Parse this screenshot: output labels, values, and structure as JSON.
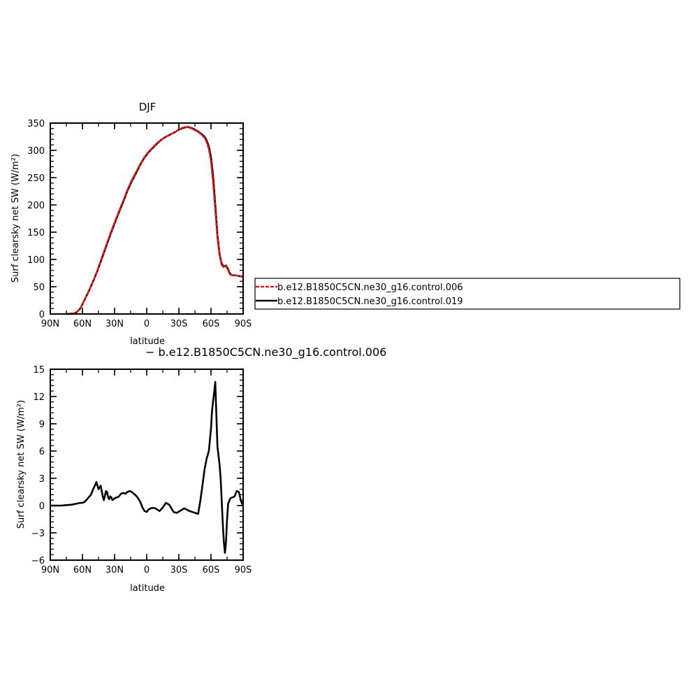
{
  "chart_data": [
    {
      "type": "line",
      "title": "DJF",
      "xlabel": "latitude",
      "ylabel": "Surf clearsky net SW (W/m²)",
      "xlim": [
        90,
        -90
      ],
      "ylim": [
        0,
        350
      ],
      "x_ticks": [
        90,
        60,
        30,
        0,
        -30,
        -60,
        -90
      ],
      "x_tick_labels": [
        "90N",
        "60N",
        "30N",
        "0",
        "30S",
        "60S",
        "90S"
      ],
      "y_ticks": [
        0,
        50,
        100,
        150,
        200,
        250,
        300,
        350
      ],
      "y_tick_labels": [
        "0",
        "50",
        "100",
        "150",
        "200",
        "250",
        "300",
        "350"
      ],
      "legend": {
        "placement": "right",
        "entries": [
          {
            "name": "b.e12.B1850C5CN.ne30_g16.control.006",
            "color": "#e41a1c",
            "dash": "dashed"
          },
          {
            "name": "b.e12.B1850C5CN.ne30_g16.control.019",
            "color": "#000000",
            "dash": "solid"
          }
        ]
      },
      "series": [
        {
          "name": "b.e12.B1850C5CN.ne30_g16.control.006",
          "color": "#e41a1c",
          "x": [
            75,
            70,
            67,
            65,
            62,
            60,
            57,
            54,
            50,
            46,
            42,
            38,
            34,
            30,
            26,
            22,
            18,
            14,
            10,
            6,
            2,
            -2,
            -6,
            -10,
            -14,
            -18,
            -22,
            -26,
            -30,
            -34,
            -38,
            -42,
            -46,
            -50,
            -54,
            -56,
            -58,
            -60,
            -62,
            -64,
            -66,
            -68,
            -70,
            -72,
            -74,
            -76,
            -78,
            -80,
            -82,
            -85,
            -88,
            -90
          ],
          "y": [
            0,
            0.5,
            1.5,
            4,
            10,
            18,
            30,
            42,
            60,
            80,
            103,
            125,
            147,
            168,
            188,
            207,
            228,
            245,
            260,
            275,
            288,
            298,
            306,
            314,
            320,
            325,
            329,
            333,
            338,
            342,
            343,
            340,
            336,
            331,
            323,
            315,
            302,
            280,
            240,
            190,
            140,
            108,
            90,
            85,
            88,
            80,
            72,
            71,
            71,
            70,
            69,
            68
          ]
        },
        {
          "name": "b.e12.B1850C5CN.ne30_g16.control.019",
          "color": "#000000",
          "x": [
            75,
            70,
            67,
            65,
            62,
            60,
            57,
            54,
            50,
            46,
            42,
            38,
            34,
            30,
            26,
            22,
            18,
            14,
            10,
            6,
            2,
            -2,
            -6,
            -10,
            -14,
            -18,
            -22,
            -26,
            -30,
            -34,
            -38,
            -42,
            -46,
            -50,
            -54,
            -56,
            -58,
            -60,
            -62,
            -64,
            -66,
            -68,
            -70,
            -72,
            -74,
            -76,
            -78,
            -80,
            -82,
            -85,
            -88,
            -90
          ],
          "y": [
            0,
            0.5,
            1.5,
            4,
            10,
            18,
            30,
            42,
            60,
            79,
            101,
            123,
            145,
            166,
            186,
            205,
            226,
            243,
            258,
            274,
            287,
            297,
            305,
            313,
            320,
            325,
            329,
            333,
            338,
            341,
            343,
            341,
            337,
            332,
            325,
            318,
            307,
            288,
            252,
            200,
            145,
            110,
            92,
            87,
            89,
            82,
            73,
            71,
            71,
            70,
            69,
            68
          ]
        }
      ]
    },
    {
      "type": "line",
      "title": "",
      "xlabel": "latitude",
      "ylabel": "Surf clearsky net SW (W/m²)",
      "xlim": [
        90,
        -90
      ],
      "ylim": [
        -6,
        15
      ],
      "x_ticks": [
        90,
        60,
        30,
        0,
        -30,
        -60,
        -90
      ],
      "x_tick_labels": [
        "90N",
        "60N",
        "30N",
        "0",
        "30S",
        "60S",
        "90S"
      ],
      "y_ticks": [
        -6,
        -3,
        0,
        3,
        6,
        9,
        12,
        15
      ],
      "y_tick_labels": [
        "−6",
        "−3",
        "0",
        "3",
        "6",
        "9",
        "12",
        "15"
      ],
      "legend_label": "− b.e12.B1850C5CN.ne30_g16.control.006",
      "series": [
        {
          "name": "",
          "color": "#000000",
          "x": [
            90,
            85,
            80,
            75,
            70,
            66,
            62,
            60,
            58,
            55,
            52,
            50,
            48,
            47,
            45,
            44,
            43,
            42,
            41,
            40,
            39,
            38,
            37,
            36,
            35,
            34,
            33,
            32,
            30,
            28,
            26,
            24,
            22,
            20,
            18,
            16,
            14,
            12,
            10,
            8,
            6,
            4,
            2,
            0,
            -2,
            -5,
            -8,
            -12,
            -15,
            -18,
            -21,
            -23,
            -25,
            -28,
            -31,
            -35,
            -40,
            -45,
            -48,
            -50,
            -52,
            -54,
            -56,
            -58,
            -60,
            -61,
            -62,
            -63,
            -64,
            -65,
            -66,
            -67,
            -68,
            -69,
            -70,
            -71,
            -72,
            -73,
            -74,
            -75,
            -76,
            -78,
            -80,
            -82,
            -84,
            -86,
            -88,
            -89,
            -90
          ],
          "y": [
            0,
            0,
            0,
            0.05,
            0.1,
            0.2,
            0.3,
            0.3,
            0.4,
            0.8,
            1.2,
            1.8,
            2.3,
            2.6,
            1.8,
            2.0,
            2.2,
            1.6,
            1.0,
            0.6,
            1.1,
            1.6,
            1.5,
            0.9,
            0.7,
            1.0,
            0.9,
            0.6,
            0.8,
            0.9,
            1.0,
            1.3,
            1.4,
            1.3,
            1.5,
            1.6,
            1.5,
            1.3,
            1.1,
            0.8,
            0.4,
            -0.2,
            -0.6,
            -0.7,
            -0.4,
            -0.25,
            -0.3,
            -0.6,
            -0.2,
            0.3,
            0.1,
            -0.3,
            -0.7,
            -0.8,
            -0.6,
            -0.3,
            -0.6,
            -0.8,
            -0.9,
            0.5,
            2.2,
            4.0,
            5.2,
            6.0,
            8.5,
            10.5,
            11.5,
            12.5,
            13.6,
            10.0,
            6.5,
            5.5,
            4.5,
            3.0,
            0.5,
            -2.0,
            -4.0,
            -5.2,
            -4.0,
            -1.5,
            0.2,
            0.8,
            0.9,
            1.0,
            1.6,
            1.5,
            0.5,
            0.2,
            0.3
          ]
        }
      ]
    }
  ]
}
